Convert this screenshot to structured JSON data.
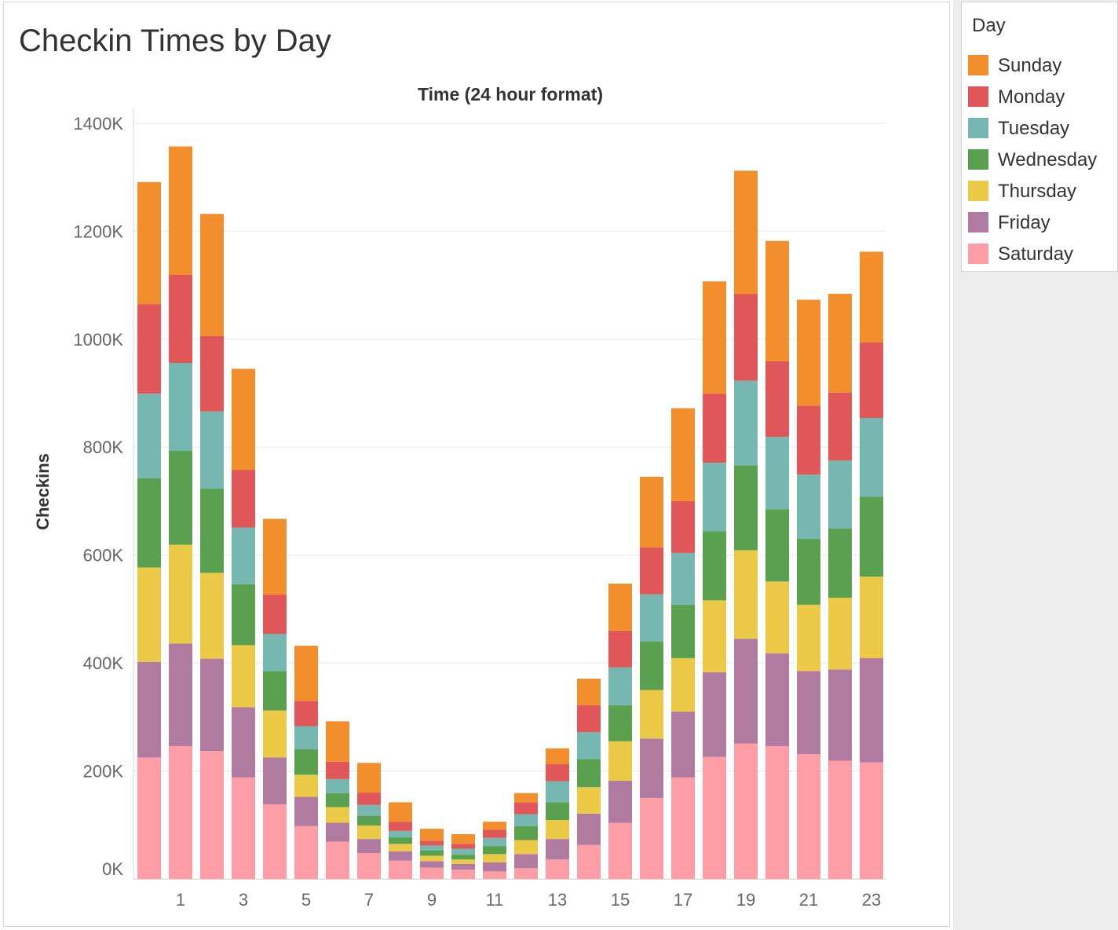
{
  "page": {
    "title": "Checkin Times by Day"
  },
  "legend": {
    "title": "Day"
  },
  "chart_data": {
    "type": "bar",
    "stacked": true,
    "title": "Time (24 hour format)",
    "xlabel": "",
    "ylabel": "Checkins",
    "x": [
      0,
      1,
      2,
      3,
      4,
      5,
      6,
      7,
      8,
      9,
      10,
      11,
      12,
      13,
      14,
      15,
      16,
      17,
      18,
      19,
      20,
      21,
      22,
      23
    ],
    "x_tick_labels": [
      "1",
      "3",
      "5",
      "7",
      "9",
      "11",
      "13",
      "15",
      "17",
      "19",
      "21",
      "23"
    ],
    "x_tick_values": [
      1,
      3,
      5,
      7,
      9,
      11,
      13,
      15,
      17,
      19,
      21,
      23
    ],
    "y_ticks": [
      0,
      200000,
      400000,
      600000,
      800000,
      1000000,
      1200000,
      1400000
    ],
    "y_tick_labels": [
      "0K",
      "200K",
      "400K",
      "600K",
      "800K",
      "1000K",
      "1200K",
      "1400K"
    ],
    "ylim": [
      0,
      1410000
    ],
    "grid": true,
    "legend_position": "right",
    "series": [
      {
        "name": "Saturday",
        "color": "#ff9da7",
        "values": [
          225000,
          246000,
          237000,
          188000,
          138000,
          98000,
          69000,
          48000,
          34000,
          21000,
          17000,
          14000,
          20000,
          36000,
          63000,
          104000,
          150000,
          188000,
          226000,
          251000,
          246000,
          231000,
          219000,
          216000
        ]
      },
      {
        "name": "Friday",
        "color": "#b07aa1",
        "values": [
          177000,
          190000,
          171000,
          130000,
          87000,
          54000,
          35000,
          26000,
          17000,
          12000,
          11000,
          17000,
          26000,
          38000,
          58000,
          78000,
          110000,
          122000,
          157000,
          194000,
          172000,
          154000,
          169000,
          193000
        ]
      },
      {
        "name": "Thursday",
        "color": "#edc948",
        "values": [
          175000,
          183000,
          159000,
          115000,
          87000,
          41000,
          29000,
          25000,
          14000,
          10000,
          8000,
          15000,
          26000,
          35000,
          49000,
          73000,
          90000,
          99000,
          133000,
          164000,
          133000,
          123000,
          133000,
          151000
        ]
      },
      {
        "name": "Wednesday",
        "color": "#59a14f",
        "values": [
          165000,
          174000,
          156000,
          113000,
          73000,
          47000,
          26000,
          18000,
          12000,
          10000,
          9000,
          15000,
          26000,
          33000,
          52000,
          67000,
          90000,
          99000,
          128000,
          157000,
          134000,
          122000,
          128000,
          148000
        ]
      },
      {
        "name": "Tuesday",
        "color": "#76b7b2",
        "values": [
          157000,
          163000,
          143000,
          105000,
          69000,
          43000,
          26000,
          20000,
          12000,
          9000,
          11000,
          15000,
          22000,
          39000,
          50000,
          70000,
          87000,
          96000,
          127000,
          157000,
          134000,
          119000,
          126000,
          146000
        ]
      },
      {
        "name": "Monday",
        "color": "#e15759",
        "values": [
          166000,
          163000,
          140000,
          107000,
          73000,
          47000,
          32000,
          23000,
          17000,
          9000,
          9000,
          15000,
          22000,
          32000,
          50000,
          68000,
          87000,
          96000,
          128000,
          161000,
          140000,
          128000,
          126000,
          140000
        ]
      },
      {
        "name": "Sunday",
        "color": "#f28e2b",
        "values": [
          226000,
          238000,
          226000,
          187000,
          140000,
          102000,
          75000,
          55000,
          36000,
          22000,
          18000,
          15000,
          17000,
          29000,
          49000,
          87000,
          131000,
          172000,
          208000,
          228000,
          223000,
          196000,
          183000,
          168000
        ]
      }
    ]
  }
}
